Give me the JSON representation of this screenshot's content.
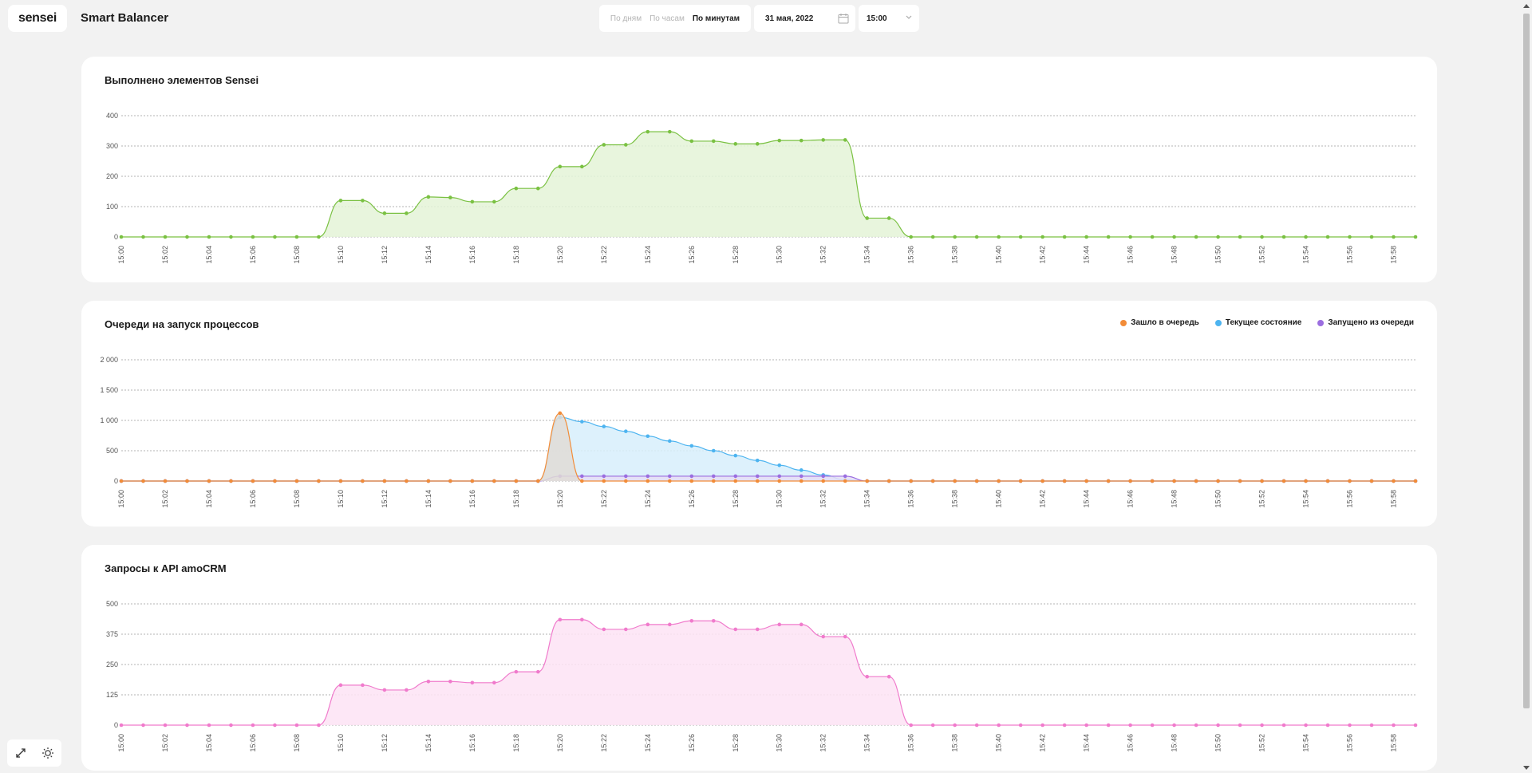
{
  "header": {
    "logo": "sensei",
    "app_title": "Smart Balancer",
    "period_options": [
      {
        "label": "По дням",
        "active": false
      },
      {
        "label": "По часам",
        "active": false
      },
      {
        "label": "По минутам",
        "active": true
      }
    ],
    "date": "31 мая, 2022",
    "time": "15:00"
  },
  "tools": {
    "icons": [
      "expand-icon",
      "theme-toggle-icon"
    ]
  },
  "chart_data": [
    {
      "type": "area",
      "title": "Выполнено элементов Sensei",
      "x": [
        "15:00",
        "15:01",
        "15:02",
        "15:03",
        "15:04",
        "15:05",
        "15:06",
        "15:07",
        "15:08",
        "15:09",
        "15:10",
        "15:11",
        "15:12",
        "15:13",
        "15:14",
        "15:15",
        "15:16",
        "15:17",
        "15:18",
        "15:19",
        "15:20",
        "15:21",
        "15:22",
        "15:23",
        "15:24",
        "15:25",
        "15:26",
        "15:27",
        "15:28",
        "15:29",
        "15:30",
        "15:31",
        "15:32",
        "15:33",
        "15:34",
        "15:35",
        "15:36",
        "15:37",
        "15:38",
        "15:39",
        "15:40",
        "15:41",
        "15:42",
        "15:43",
        "15:44",
        "15:45",
        "15:46",
        "15:47",
        "15:48",
        "15:49",
        "15:50",
        "15:51",
        "15:52",
        "15:53",
        "15:54",
        "15:55",
        "15:56",
        "15:57",
        "15:58",
        "15:59"
      ],
      "x_tick_labels": [
        "15:00",
        "15:02",
        "15:04",
        "15:06",
        "15:08",
        "15:10",
        "15:12",
        "15:14",
        "15:16",
        "15:18",
        "15:20",
        "15:22",
        "15:24",
        "15:26",
        "15:28",
        "15:30",
        "15:32",
        "15:34",
        "15:36",
        "15:38",
        "15:40",
        "15:42",
        "15:44",
        "15:46",
        "15:48",
        "15:50",
        "15:52",
        "15:54",
        "15:56",
        "15:58"
      ],
      "y_ticks": [
        "0",
        "100",
        "200",
        "300",
        "400"
      ],
      "ylim": [
        0,
        400
      ],
      "grid": true,
      "series": [
        {
          "color": "#7ac142",
          "fill": "#e4f3d7",
          "values": [
            0,
            0,
            0,
            0,
            0,
            0,
            0,
            0,
            0,
            0,
            120,
            120,
            78,
            78,
            132,
            130,
            116,
            116,
            160,
            160,
            232,
            232,
            304,
            304,
            347,
            347,
            316,
            316,
            307,
            307,
            318,
            318,
            320,
            320,
            62,
            62,
            0,
            0,
            0,
            0,
            0,
            0,
            0,
            0,
            0,
            0,
            0,
            0,
            0,
            0,
            0,
            0,
            0,
            0,
            0,
            0,
            0,
            0,
            0,
            0
          ]
        }
      ]
    },
    {
      "type": "area",
      "title": "Очереди на запуск процессов",
      "x": [
        "15:00",
        "15:01",
        "15:02",
        "15:03",
        "15:04",
        "15:05",
        "15:06",
        "15:07",
        "15:08",
        "15:09",
        "15:10",
        "15:11",
        "15:12",
        "15:13",
        "15:14",
        "15:15",
        "15:16",
        "15:17",
        "15:18",
        "15:19",
        "15:20",
        "15:21",
        "15:22",
        "15:23",
        "15:24",
        "15:25",
        "15:26",
        "15:27",
        "15:28",
        "15:29",
        "15:30",
        "15:31",
        "15:32",
        "15:33",
        "15:34",
        "15:35",
        "15:36",
        "15:37",
        "15:38",
        "15:39",
        "15:40",
        "15:41",
        "15:42",
        "15:43",
        "15:44",
        "15:45",
        "15:46",
        "15:47",
        "15:48",
        "15:49",
        "15:50",
        "15:51",
        "15:52",
        "15:53",
        "15:54",
        "15:55",
        "15:56",
        "15:57",
        "15:58",
        "15:59"
      ],
      "x_tick_labels": [
        "15:00",
        "15:02",
        "15:04",
        "15:06",
        "15:08",
        "15:10",
        "15:12",
        "15:14",
        "15:16",
        "15:18",
        "15:20",
        "15:22",
        "15:24",
        "15:26",
        "15:28",
        "15:30",
        "15:32",
        "15:34",
        "15:36",
        "15:38",
        "15:40",
        "15:42",
        "15:44",
        "15:46",
        "15:48",
        "15:50",
        "15:52",
        "15:54",
        "15:56",
        "15:58"
      ],
      "y_ticks": [
        "0",
        "500",
        "1 000",
        "1 500",
        "2 000"
      ],
      "ylim": [
        0,
        2000
      ],
      "grid": true,
      "legend_position": "top-right",
      "series": [
        {
          "name": "Текущее состояние",
          "color": "#4db4f0",
          "fill": "#d7eefc",
          "values": [
            0,
            0,
            0,
            0,
            0,
            0,
            0,
            0,
            0,
            0,
            0,
            0,
            0,
            0,
            0,
            0,
            0,
            0,
            0,
            0,
            1050,
            980,
            900,
            820,
            740,
            660,
            580,
            500,
            420,
            340,
            260,
            180,
            100,
            20,
            0,
            0,
            0,
            0,
            0,
            0,
            0,
            0,
            0,
            0,
            0,
            0,
            0,
            0,
            0,
            0,
            0,
            0,
            0,
            0,
            0,
            0,
            0,
            0,
            0,
            0
          ]
        },
        {
          "name": "Запущено из очереди",
          "color": "#9b6ee0",
          "fill": "#e6ddf5",
          "values": [
            0,
            0,
            0,
            0,
            0,
            0,
            0,
            0,
            0,
            0,
            0,
            0,
            0,
            0,
            0,
            0,
            0,
            0,
            0,
            0,
            80,
            80,
            80,
            80,
            80,
            80,
            80,
            80,
            80,
            80,
            80,
            80,
            80,
            80,
            0,
            0,
            0,
            0,
            0,
            0,
            0,
            0,
            0,
            0,
            0,
            0,
            0,
            0,
            0,
            0,
            0,
            0,
            0,
            0,
            0,
            0,
            0,
            0,
            0,
            0
          ]
        },
        {
          "name": "Зашло в очередь",
          "color": "#f28c38",
          "fill": "#e0dcd6",
          "values": [
            0,
            0,
            0,
            0,
            0,
            0,
            0,
            0,
            0,
            0,
            0,
            0,
            0,
            0,
            0,
            0,
            0,
            0,
            0,
            0,
            1120,
            0,
            0,
            0,
            0,
            0,
            0,
            0,
            0,
            0,
            0,
            0,
            0,
            0,
            0,
            0,
            0,
            0,
            0,
            0,
            0,
            0,
            0,
            0,
            0,
            0,
            0,
            0,
            0,
            0,
            0,
            0,
            0,
            0,
            0,
            0,
            0,
            0,
            0,
            0
          ]
        }
      ]
    },
    {
      "type": "area",
      "title": "Запросы к API amoCRM",
      "x": [
        "15:00",
        "15:01",
        "15:02",
        "15:03",
        "15:04",
        "15:05",
        "15:06",
        "15:07",
        "15:08",
        "15:09",
        "15:10",
        "15:11",
        "15:12",
        "15:13",
        "15:14",
        "15:15",
        "15:16",
        "15:17",
        "15:18",
        "15:19",
        "15:20",
        "15:21",
        "15:22",
        "15:23",
        "15:24",
        "15:25",
        "15:26",
        "15:27",
        "15:28",
        "15:29",
        "15:30",
        "15:31",
        "15:32",
        "15:33",
        "15:34",
        "15:35",
        "15:36",
        "15:37",
        "15:38",
        "15:39",
        "15:40",
        "15:41",
        "15:42",
        "15:43",
        "15:44",
        "15:45",
        "15:46",
        "15:47",
        "15:48",
        "15:49",
        "15:50",
        "15:51",
        "15:52",
        "15:53",
        "15:54",
        "15:55",
        "15:56",
        "15:57",
        "15:58",
        "15:59"
      ],
      "x_tick_labels": [
        "15:00",
        "15:02",
        "15:04",
        "15:06",
        "15:08",
        "15:10",
        "15:12",
        "15:14",
        "15:16",
        "15:18",
        "15:20",
        "15:22",
        "15:24",
        "15:26",
        "15:28",
        "15:30",
        "15:32",
        "15:34",
        "15:36",
        "15:38",
        "15:40",
        "15:42",
        "15:44",
        "15:46",
        "15:48",
        "15:50",
        "15:52",
        "15:54",
        "15:56",
        "15:58"
      ],
      "y_ticks": [
        "0",
        "125",
        "250",
        "375",
        "500"
      ],
      "ylim": [
        0,
        500
      ],
      "grid": true,
      "series": [
        {
          "color": "#f07bcc",
          "fill": "#fde3f4",
          "values": [
            0,
            0,
            0,
            0,
            0,
            0,
            0,
            0,
            0,
            0,
            165,
            165,
            145,
            145,
            180,
            180,
            175,
            175,
            220,
            220,
            435,
            435,
            395,
            395,
            415,
            415,
            430,
            430,
            395,
            395,
            415,
            415,
            365,
            365,
            200,
            200,
            0,
            0,
            0,
            0,
            0,
            0,
            0,
            0,
            0,
            0,
            0,
            0,
            0,
            0,
            0,
            0,
            0,
            0,
            0,
            0,
            0,
            0,
            0,
            0
          ]
        }
      ]
    }
  ]
}
